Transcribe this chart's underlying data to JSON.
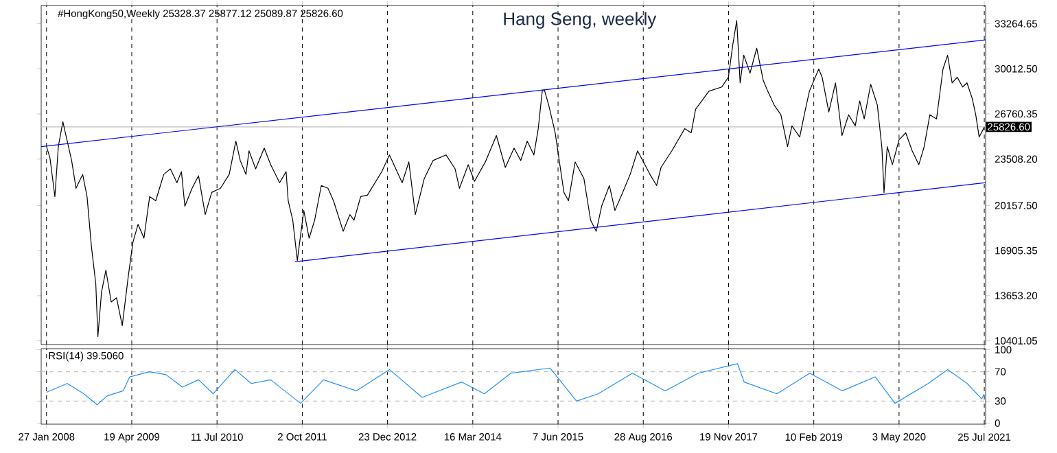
{
  "chart_data": [
    {
      "type": "line",
      "title": "Hang Seng, weekly",
      "annotations": [
        "#HongKong50,Weekly  25328.37 25877.12 25089.87 25826.60"
      ],
      "xlim": [
        "2007-12-30",
        "2021-08-01"
      ],
      "xticks": [
        {
          "value": "2008-01-27",
          "label": null
        },
        {
          "value": "2009-04-19",
          "label": null
        },
        {
          "value": "2010-07-11",
          "label": null
        },
        {
          "value": "2011-10-02",
          "label": null
        },
        {
          "value": "2012-12-23",
          "label": null
        },
        {
          "value": "2014-03-16",
          "label": null
        },
        {
          "value": "2015-06-07",
          "label": null
        },
        {
          "value": "2016-08-28",
          "label": null
        },
        {
          "value": "2017-11-19",
          "label": null
        },
        {
          "value": "2019-02-10",
          "label": null
        },
        {
          "value": "2020-05-03",
          "label": null
        },
        {
          "value": "2021-07-25",
          "label": null
        }
      ],
      "ylim": [
        10130,
        34580
      ],
      "yticks": [
        {
          "value": 10401.05,
          "label": "10401.05"
        },
        {
          "value": 13653.2,
          "label": "13653.20"
        },
        {
          "value": 16905.35,
          "label": "16905.35"
        },
        {
          "value": 20157.5,
          "label": "20157.50"
        },
        {
          "value": 23508.2,
          "label": "23508.20"
        },
        {
          "value": 26760.35,
          "label": "26760.35"
        },
        {
          "value": 30012.5,
          "label": "30012.50"
        },
        {
          "value": 33264.65,
          "label": "33264.65"
        }
      ],
      "tick_labels": "y",
      "grid": "x",
      "marker": "none",
      "ref_lines": [
        {
          "axis": "y",
          "value": 25826.6,
          "label": "25826.60",
          "color": "#c0c0c0"
        }
      ],
      "series": [
        {
          "color": "#000000",
          "x": [
            "2008-01-27",
            "2008-02-14",
            "2008-03-11",
            "2008-03-29",
            "2008-04-22",
            "2008-05-10",
            "2008-06-07",
            "2008-06-30",
            "2008-08-04",
            "2008-08-27",
            "2008-09-19",
            "2008-10-12",
            "2008-10-23",
            "2008-11-11",
            "2008-12-04",
            "2009-01-01",
            "2009-01-29",
            "2009-02-28",
            "2009-04-02",
            "2009-04-25",
            "2009-05-22",
            "2009-06-22",
            "2009-07-22",
            "2009-08-23",
            "2009-10-04",
            "2009-11-08",
            "2009-12-12",
            "2010-01-05",
            "2010-01-23",
            "2010-03-02",
            "2010-04-05",
            "2010-05-10",
            "2010-06-13",
            "2010-07-29",
            "2010-09-13",
            "2010-10-18",
            "2010-11-10",
            "2010-12-10",
            "2010-12-26",
            "2011-01-30",
            "2011-03-16",
            "2011-04-19",
            "2011-06-05",
            "2011-07-09",
            "2011-07-20",
            "2011-08-13",
            "2011-09-06",
            "2011-10-10",
            "2011-11-07",
            "2011-12-06",
            "2012-01-10",
            "2012-02-14",
            "2012-03-14",
            "2012-05-04",
            "2012-06-08",
            "2012-06-30",
            "2012-08-04",
            "2012-09-08",
            "2012-11-23",
            "2013-01-02",
            "2013-03-10",
            "2013-04-14",
            "2013-05-18",
            "2013-07-04",
            "2013-08-19",
            "2013-10-27",
            "2013-12-13",
            "2014-01-05",
            "2014-02-20",
            "2014-03-25",
            "2014-05-21",
            "2014-07-18",
            "2014-09-03",
            "2014-10-19",
            "2014-11-23",
            "2014-12-27",
            "2015-01-31",
            "2015-02-23",
            "2015-03-16",
            "2015-03-27",
            "2015-04-19",
            "2015-05-23",
            "2015-07-08",
            "2015-08-01",
            "2015-09-05",
            "2015-10-21",
            "2015-11-25",
            "2015-12-25",
            "2016-01-22",
            "2016-03-03",
            "2016-04-01",
            "2016-05-12",
            "2016-06-20",
            "2016-07-29",
            "2016-10-02",
            "2016-11-06",
            "2016-11-29",
            "2017-01-25",
            "2017-04-03",
            "2017-05-07",
            "2017-05-30",
            "2017-08-08",
            "2017-10-14",
            "2017-11-18",
            "2017-12-12",
            "2018-01-01",
            "2018-01-19",
            "2018-02-07",
            "2018-03-12",
            "2018-04-16",
            "2018-05-20",
            "2018-06-13",
            "2018-07-17",
            "2018-08-21",
            "2018-09-25",
            "2018-10-18",
            "2018-11-28",
            "2018-12-25",
            "2019-01-18",
            "2019-03-08",
            "2019-03-26",
            "2019-04-30",
            "2019-06-04",
            "2019-07-08",
            "2019-08-12",
            "2019-09-16",
            "2019-10-09",
            "2019-11-02",
            "2019-12-06",
            "2020-01-10",
            "2020-02-03",
            "2020-02-14",
            "2020-03-02",
            "2020-03-29",
            "2020-05-03",
            "2020-06-07",
            "2020-07-11",
            "2020-08-15",
            "2020-09-12",
            "2020-10-12",
            "2020-11-16",
            "2020-12-20",
            "2021-01-13",
            "2021-02-06",
            "2021-03-05",
            "2021-04-02",
            "2021-04-25",
            "2021-05-22",
            "2021-06-10",
            "2021-06-28",
            "2021-07-25"
          ],
          "values": [
            24400,
            23600,
            20800,
            24400,
            26200,
            25100,
            23400,
            21400,
            22400,
            20800,
            17200,
            14500,
            10700,
            13900,
            15500,
            13200,
            13500,
            11500,
            15200,
            17500,
            18800,
            17800,
            20800,
            20500,
            22400,
            22800,
            21800,
            22600,
            20100,
            21400,
            22300,
            19500,
            21100,
            21400,
            22400,
            24800,
            23400,
            22400,
            24100,
            22800,
            24300,
            23100,
            21800,
            22600,
            20500,
            19100,
            16200,
            19800,
            17800,
            19100,
            21600,
            21400,
            20500,
            18300,
            19500,
            19100,
            20800,
            20900,
            22600,
            23800,
            21800,
            23300,
            19500,
            22100,
            23400,
            23800,
            22800,
            21400,
            23100,
            21900,
            23300,
            25200,
            22900,
            24300,
            23400,
            24800,
            23800,
            25700,
            28400,
            28500,
            27400,
            25400,
            21100,
            20500,
            23300,
            22100,
            19100,
            18300,
            20100,
            21600,
            19800,
            21100,
            22400,
            24100,
            22400,
            21600,
            22900,
            24100,
            25700,
            25400,
            27100,
            28400,
            28700,
            29400,
            31800,
            33500,
            29000,
            31000,
            29700,
            31500,
            29200,
            28400,
            27400,
            26700,
            24400,
            25900,
            25100,
            26900,
            28400,
            30000,
            29400,
            26900,
            29000,
            25200,
            26700,
            25900,
            27700,
            26400,
            28900,
            27400,
            24300,
            21100,
            24400,
            23100,
            24900,
            25400,
            24100,
            23100,
            24400,
            26700,
            26400,
            30000,
            31000,
            29000,
            29400,
            28700,
            29000,
            27900,
            26700,
            25100,
            25800
          ]
        },
        {
          "color": "#0000ff",
          "x": [
            "2007-12-30",
            "2021-08-01"
          ],
          "values": [
            24400,
            32100
          ]
        },
        {
          "color": "#0000ff",
          "x": [
            "2011-08-25",
            "2021-08-01"
          ],
          "values": [
            16100,
            21800
          ]
        }
      ]
    },
    {
      "type": "line",
      "title": "RSI(14) 39.5060",
      "xlim": [
        "2007-12-30",
        "2021-08-01"
      ],
      "xticks": [
        {
          "value": "2008-01-27",
          "label": "27 Jan 2008"
        },
        {
          "value": "2009-04-19",
          "label": "19 Apr 2009"
        },
        {
          "value": "2010-07-11",
          "label": "11 Jul 2010"
        },
        {
          "value": "2011-10-02",
          "label": "2 Oct 2011"
        },
        {
          "value": "2012-12-23",
          "label": "23 Dec 2012"
        },
        {
          "value": "2014-03-16",
          "label": "16 Mar 2014"
        },
        {
          "value": "2015-06-07",
          "label": "7 Jun 2015"
        },
        {
          "value": "2016-08-28",
          "label": "28 Aug 2016"
        },
        {
          "value": "2017-11-19",
          "label": "19 Nov 2017"
        },
        {
          "value": "2019-02-10",
          "label": "10 Feb 2019"
        },
        {
          "value": "2020-05-03",
          "label": "3 May 2020"
        },
        {
          "value": "2021-07-25",
          "label": "25 Jul 2021"
        }
      ],
      "ylim": [
        -1.4,
        101.4
      ],
      "yticks": [
        0,
        30,
        70,
        100
      ],
      "grid": "x",
      "marker": "none",
      "ref_lines": [
        {
          "axis": "y",
          "value": 30,
          "color": "#c0c0c0",
          "line_style": "dashed"
        },
        {
          "axis": "y",
          "value": 70,
          "color": "#c0c0c0",
          "line_style": "dashed"
        }
      ],
      "series": [
        {
          "color": "#1e90ff",
          "x": [
            "2008-01-27",
            "2008-05-15",
            "2008-08-10",
            "2008-10-19",
            "2008-12-10",
            "2009-03-05",
            "2009-04-08",
            "2009-07-21",
            "2009-10-16",
            "2010-01-10",
            "2010-04-05",
            "2010-06-21",
            "2010-10-13",
            "2011-01-07",
            "2011-04-19",
            "2011-09-23",
            "2012-01-22",
            "2012-07-12",
            "2013-01-02",
            "2013-06-23",
            "2014-01-16",
            "2014-05-16",
            "2014-10-02",
            "2015-04-26",
            "2015-09-12",
            "2016-01-04",
            "2016-07-02",
            "2016-12-21",
            "2017-06-13",
            "2018-01-05",
            "2018-02-09",
            "2018-07-31",
            "2019-01-20",
            "2019-07-10",
            "2019-12-30",
            "2020-04-12",
            "2020-10-03",
            "2021-01-14",
            "2021-04-26",
            "2021-07-11",
            "2021-07-25"
          ],
          "values": [
            42,
            54,
            40,
            25,
            37,
            44,
            63,
            70,
            66,
            49,
            59,
            40,
            73,
            54,
            59,
            27,
            59,
            44,
            73,
            35,
            56,
            40,
            68,
            75,
            30,
            40,
            68,
            44,
            68,
            81,
            56,
            40,
            68,
            44,
            63,
            27,
            54,
            73,
            54,
            33,
            40
          ]
        }
      ]
    }
  ]
}
